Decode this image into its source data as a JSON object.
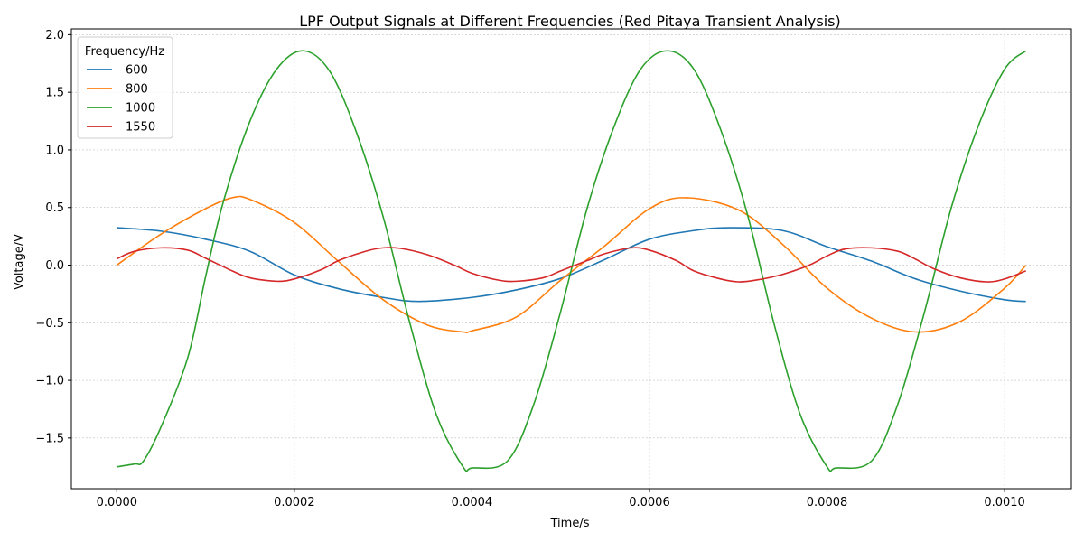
{
  "chart_data": {
    "type": "line",
    "title": "LPF Output Signals at Different Frequencies (Red Pitaya Transient Analysis)",
    "xlabel": "Time/s",
    "ylabel": "Voltage/V",
    "xlim": [
      -5.12e-05,
      0.0010752
    ],
    "ylim": [
      -1.94,
      2.05
    ],
    "xticks": [
      0,
      0.0002,
      0.0004,
      0.0006,
      0.0008,
      0.001
    ],
    "xtick_labels": [
      "0.0000",
      "0.0002",
      "0.0004",
      "0.0006",
      "0.0008",
      "0.0010"
    ],
    "yticks": [
      -1.5,
      -1.0,
      -0.5,
      0.0,
      0.5,
      1.0,
      1.5,
      2.0
    ],
    "ytick_labels": [
      "−1.5",
      "−1.0",
      "−0.5",
      "0.0",
      "0.5",
      "1.0",
      "1.5",
      "2.0"
    ],
    "grid": true,
    "legend": {
      "title": "Frequency/Hz",
      "placement": "top-left"
    },
    "series": [
      {
        "name": "600",
        "color": "#1f77b4",
        "x": [
          0,
          5e-05,
          0.0001,
          0.00015,
          0.0002,
          0.00025,
          0.0003,
          0.00034,
          0.0004,
          0.00045,
          0.0005,
          0.00055,
          0.0006,
          0.00065,
          0.00069,
          0.00075,
          0.0008,
          0.00085,
          0.0009,
          0.00095,
          0.001,
          0.001024
        ],
        "y": [
          0.325,
          0.295,
          0.225,
          0.12,
          -0.085,
          -0.205,
          -0.28,
          -0.315,
          -0.28,
          -0.215,
          -0.115,
          0.05,
          0.225,
          0.3,
          0.325,
          0.3,
          0.16,
          0.035,
          -0.12,
          -0.225,
          -0.3,
          -0.315
        ]
      },
      {
        "name": "800",
        "color": "#ff7f0e",
        "x": [
          0,
          5e-05,
          0.0001,
          0.00013,
          0.00015,
          0.0002,
          0.00025,
          0.0003,
          0.00035,
          0.00039,
          0.0004,
          0.00045,
          0.0005,
          0.00055,
          0.0006,
          0.00064,
          0.0007,
          0.00075,
          0.0008,
          0.00085,
          0.0009,
          0.00095,
          0.001,
          0.001024
        ],
        "y": [
          0.0,
          0.27,
          0.49,
          0.585,
          0.57,
          0.37,
          0.03,
          -0.3,
          -0.52,
          -0.58,
          -0.57,
          -0.45,
          -0.13,
          0.17,
          0.49,
          0.585,
          0.48,
          0.18,
          -0.2,
          -0.46,
          -0.58,
          -0.49,
          -0.2,
          0.0
        ]
      },
      {
        "name": "1000",
        "color": "#2ca02c",
        "x": [
          0,
          2e-05,
          3e-05,
          5e-05,
          8e-05,
          0.0001,
          0.00012,
          0.00015,
          0.00018,
          0.00021,
          0.00024,
          0.00027,
          0.0003,
          0.00033,
          0.00036,
          0.00039,
          0.0004,
          0.00044,
          0.00047,
          0.0005,
          0.00053,
          0.00056,
          0.00059,
          0.00062,
          0.00065,
          0.00068,
          0.00071,
          0.00074,
          0.00077,
          0.0008,
          0.00081,
          0.00085,
          0.00088,
          0.00091,
          0.00094,
          0.00097,
          0.001,
          0.001024
        ],
        "y": [
          -1.75,
          -1.725,
          -1.7,
          -1.4,
          -0.8,
          -0.1,
          0.55,
          1.25,
          1.7,
          1.86,
          1.68,
          1.15,
          0.42,
          -0.5,
          -1.3,
          -1.75,
          -1.76,
          -1.7,
          -1.2,
          -0.4,
          0.5,
          1.2,
          1.7,
          1.86,
          1.7,
          1.18,
          0.45,
          -0.5,
          -1.3,
          -1.75,
          -1.76,
          -1.7,
          -1.2,
          -0.4,
          0.5,
          1.2,
          1.7,
          1.86
        ]
      },
      {
        "name": "1550",
        "color": "#d62728",
        "x": [
          0,
          2e-05,
          5e-05,
          8e-05,
          0.0001,
          0.00013,
          0.00015,
          0.00018,
          0.0002,
          0.00023,
          0.00025,
          0.00028,
          0.0003,
          0.00032,
          0.00035,
          0.00038,
          0.0004,
          0.00043,
          0.00045,
          0.00048,
          0.0005,
          0.00053,
          0.00055,
          0.00058,
          0.0006,
          0.00063,
          0.00065,
          0.00068,
          0.0007,
          0.00072,
          0.00075,
          0.00078,
          0.0008,
          0.00082,
          0.00085,
          0.00088,
          0.0009,
          0.00092,
          0.00095,
          0.00098,
          0.001,
          0.001024
        ],
        "y": [
          0.055,
          0.12,
          0.15,
          0.13,
          0.06,
          -0.05,
          -0.11,
          -0.14,
          -0.12,
          -0.04,
          0.04,
          0.12,
          0.15,
          0.145,
          0.09,
          0.0,
          -0.07,
          -0.13,
          -0.14,
          -0.11,
          -0.05,
          0.04,
          0.1,
          0.15,
          0.13,
          0.04,
          -0.05,
          -0.12,
          -0.145,
          -0.13,
          -0.08,
          0.0,
          0.08,
          0.14,
          0.15,
          0.12,
          0.05,
          -0.03,
          -0.11,
          -0.145,
          -0.12,
          -0.05
        ]
      }
    ]
  }
}
